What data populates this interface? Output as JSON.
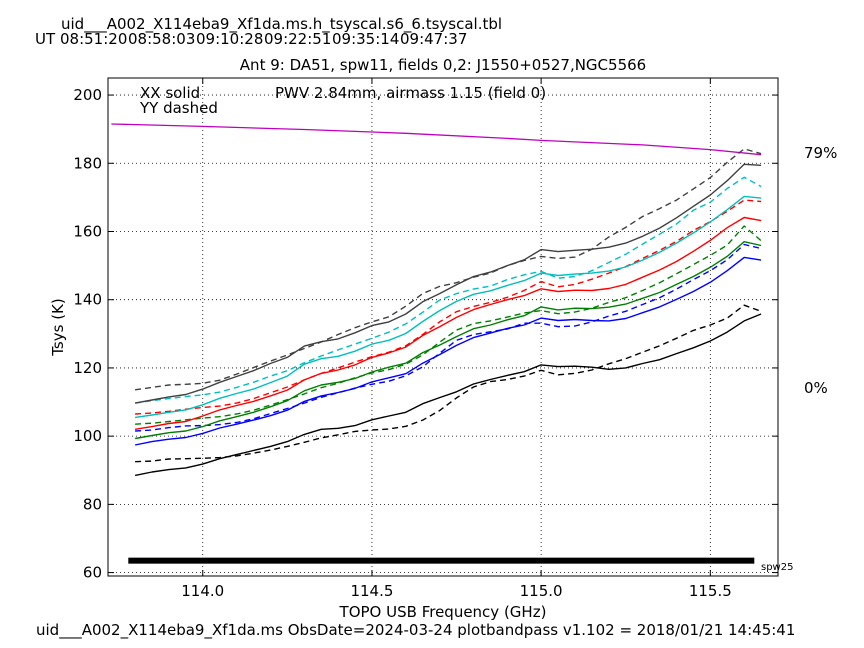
{
  "header": {
    "file_title": "uid___A002_X114eba9_Xf1da.ms.h_tsyscal.s6_6.tsyscal.tbl",
    "ut_label": "UT",
    "ut_times": [
      {
        "text": "08:51:20",
        "color": "#000000"
      },
      {
        "text": "08:58:03",
        "color": "#0000ff"
      },
      {
        "text": "09:10:28",
        "color": "#008000"
      },
      {
        "text": "09:22:51",
        "color": "#ff0000"
      },
      {
        "text": "09:35:14",
        "color": "#00bfbf"
      },
      {
        "text": "09:47:37",
        "color": "#404040"
      }
    ]
  },
  "footer": {
    "text": "uid___A002_X114eba9_Xf1da.ms  ObsDate=2024-03-24   plotbandpass v1.102 = 2018/01/21 14:45:41"
  },
  "chart_data": {
    "type": "line",
    "title": "Ant 9: DA51,  spw11,  fields 0,2: J1550+0527,NGC5566",
    "xlabel": "TOPO USB Frequency (GHz)",
    "ylabel": "Tsys (K)",
    "xlim": [
      113.72,
      115.7
    ],
    "ylim": [
      59,
      205
    ],
    "xticks": [
      114.0,
      114.5,
      115.0,
      115.5
    ],
    "xtick_labels": [
      "114.0",
      "114.5",
      "115.0",
      "115.5"
    ],
    "yticks": [
      60,
      80,
      100,
      120,
      140,
      160,
      180,
      200
    ],
    "ytick_labels": [
      "60",
      "80",
      "100",
      "120",
      "140",
      "160",
      "180",
      "200"
    ],
    "grid": true,
    "legend": {
      "solid_label": "XX solid",
      "dashed_label": "YY dashed",
      "placement": "top-left"
    },
    "pwv_text": "PWV 2.84mm, airmass 1.15 (field 0)",
    "pwv_color": "#bf00bf",
    "transmission": {
      "x": [
        113.73,
        114.0,
        114.3,
        114.6,
        114.9,
        115.0,
        115.3,
        115.5,
        115.65
      ],
      "y": [
        191.5,
        190.8,
        189.9,
        188.8,
        187.3,
        186.7,
        185.4,
        184.0,
        182.5
      ],
      "top_label": "79%",
      "bottom_label": "0%"
    },
    "spw_bar": {
      "x_range": [
        113.78,
        115.63
      ],
      "y": 63.5,
      "label": "spw25"
    },
    "x": [
      113.8,
      113.85,
      113.9,
      113.95,
      114.0,
      114.05,
      114.1,
      114.15,
      114.2,
      114.25,
      114.3,
      114.35,
      114.4,
      114.45,
      114.5,
      114.55,
      114.6,
      114.65,
      114.7,
      114.75,
      114.8,
      114.85,
      114.9,
      114.95,
      115.0,
      115.05,
      115.1,
      115.15,
      115.2,
      115.25,
      115.3,
      115.35,
      115.4,
      115.45,
      115.5,
      115.55,
      115.6,
      115.65
    ],
    "series": [
      {
        "color": "#000000",
        "dash": false,
        "values": [
          88.5,
          89.5,
          90.2,
          90.7,
          91.8,
          93.4,
          94.6,
          95.8,
          97.0,
          98.4,
          100.5,
          102.0,
          102.3,
          103.1,
          104.8,
          105.9,
          107.0,
          109.5,
          111.3,
          113.0,
          115.3,
          116.6,
          117.8,
          118.9,
          120.9,
          120.4,
          120.5,
          120.2,
          119.6,
          120.0,
          121.3,
          122.4,
          124.2,
          125.9,
          127.9,
          130.5,
          133.8,
          135.8
        ]
      },
      {
        "color": "#000000",
        "dash": true,
        "values": [
          92.5,
          92.7,
          93.3,
          93.4,
          93.5,
          93.7,
          94.2,
          95.0,
          95.9,
          97.0,
          98.2,
          99.5,
          100.4,
          101.4,
          101.8,
          102.1,
          102.9,
          104.7,
          107.5,
          111.2,
          114.4,
          116.0,
          116.6,
          117.6,
          119.3,
          118.0,
          118.4,
          119.4,
          121.2,
          122.7,
          124.6,
          126.5,
          128.7,
          131.0,
          132.6,
          134.6,
          138.4,
          136.6
        ]
      },
      {
        "color": "#0000ff",
        "dash": false,
        "values": [
          97.4,
          98.4,
          99.1,
          99.6,
          100.8,
          102.4,
          103.5,
          104.7,
          106.0,
          107.6,
          110.2,
          111.8,
          112.8,
          114.0,
          115.9,
          117.1,
          118.3,
          121.4,
          123.9,
          126.6,
          128.9,
          130.2,
          131.6,
          132.6,
          134.6,
          133.9,
          134.2,
          133.9,
          133.8,
          134.5,
          136.2,
          137.9,
          140.1,
          142.4,
          145.1,
          148.5,
          152.4,
          151.6
        ]
      },
      {
        "color": "#0000ff",
        "dash": true,
        "values": [
          101.5,
          101.8,
          102.5,
          103.0,
          103.1,
          103.4,
          104.0,
          105.1,
          106.6,
          108.1,
          109.7,
          111.4,
          112.7,
          114.1,
          115.2,
          116.1,
          117.7,
          120.3,
          124.3,
          128.1,
          129.8,
          130.6,
          131.4,
          133.1,
          133.1,
          132.1,
          132.3,
          133.5,
          135.2,
          136.6,
          138.6,
          140.6,
          143.1,
          145.9,
          148.5,
          151.7,
          156.2,
          155.0
        ]
      },
      {
        "color": "#008000",
        "dash": false,
        "values": [
          99.3,
          100.2,
          101.0,
          101.5,
          102.8,
          104.5,
          105.7,
          107.0,
          108.6,
          110.4,
          113.3,
          115.0,
          115.8,
          116.9,
          118.8,
          120.2,
          121.4,
          124.5,
          126.7,
          129.2,
          131.5,
          132.6,
          134.1,
          135.3,
          137.9,
          137.0,
          137.5,
          137.4,
          137.8,
          138.7,
          140.4,
          142.1,
          144.5,
          146.8,
          149.5,
          152.7,
          157.0,
          155.9
        ]
      },
      {
        "color": "#008000",
        "dash": true,
        "values": [
          103.5,
          103.8,
          104.3,
          104.8,
          105.3,
          105.7,
          106.5,
          107.6,
          109.1,
          110.7,
          112.4,
          114.2,
          115.5,
          117.1,
          118.5,
          119.5,
          121.1,
          123.8,
          127.5,
          131.1,
          133.0,
          133.8,
          134.9,
          136.1,
          136.8,
          135.9,
          136.4,
          137.5,
          139.2,
          140.6,
          142.7,
          145.0,
          147.6,
          150.3,
          153.0,
          156.0,
          161.6,
          157.3
        ]
      },
      {
        "color": "#ff0000",
        "dash": false,
        "values": [
          102.0,
          102.8,
          103.7,
          104.3,
          105.9,
          107.7,
          109.0,
          110.2,
          111.8,
          113.5,
          116.5,
          118.4,
          119.4,
          120.9,
          123.1,
          124.4,
          126.1,
          129.5,
          132.1,
          134.8,
          137.1,
          138.6,
          140.0,
          141.2,
          143.2,
          142.4,
          142.8,
          142.7,
          143.3,
          144.5,
          146.6,
          148.7,
          151.2,
          154.2,
          157.4,
          161.1,
          164.1,
          163.2
        ]
      },
      {
        "color": "#ff0000",
        "dash": true,
        "values": [
          106.5,
          106.8,
          107.3,
          107.9,
          108.4,
          108.8,
          109.7,
          111.0,
          112.7,
          114.4,
          116.5,
          118.4,
          120.0,
          121.7,
          123.3,
          124.6,
          126.5,
          129.8,
          133.5,
          136.5,
          138.0,
          139.2,
          140.7,
          142.7,
          145.3,
          143.8,
          144.5,
          146.0,
          147.8,
          149.7,
          152.1,
          154.5,
          157.1,
          160.3,
          162.9,
          165.9,
          169.2,
          168.8
        ]
      },
      {
        "color": "#00bfbf",
        "dash": false,
        "values": [
          105.5,
          106.2,
          107.0,
          107.7,
          109.2,
          111.1,
          112.5,
          113.8,
          115.7,
          117.6,
          121.1,
          122.7,
          123.4,
          124.9,
          127.0,
          128.1,
          130.1,
          133.6,
          136.8,
          139.5,
          141.6,
          142.6,
          144.2,
          145.6,
          147.8,
          147.1,
          147.5,
          147.8,
          148.4,
          149.6,
          151.6,
          153.9,
          156.6,
          159.6,
          162.8,
          166.4,
          170.3,
          169.8
        ]
      },
      {
        "color": "#00bfbf",
        "dash": true,
        "values": [
          109.7,
          110.4,
          111.0,
          111.6,
          112.1,
          112.9,
          114.3,
          115.8,
          117.6,
          119.2,
          121.5,
          123.5,
          125.3,
          127.0,
          128.7,
          130.5,
          132.9,
          136.3,
          139.9,
          141.8,
          143.1,
          144.0,
          145.9,
          147.3,
          148.3,
          146.3,
          146.8,
          148.5,
          150.9,
          153.3,
          156.3,
          159.2,
          162.2,
          166.2,
          168.6,
          172.6,
          175.9,
          173.2
        ]
      },
      {
        "color": "#404040",
        "dash": false,
        "values": [
          109.7,
          110.6,
          111.5,
          112.2,
          113.8,
          115.8,
          117.5,
          119.2,
          121.3,
          123.1,
          126.4,
          127.7,
          128.5,
          130.3,
          132.4,
          133.5,
          135.8,
          139.4,
          141.8,
          144.4,
          146.8,
          148.1,
          150.0,
          151.7,
          154.7,
          154.1,
          154.5,
          154.8,
          155.4,
          156.6,
          158.6,
          161.0,
          164.0,
          167.4,
          170.7,
          174.9,
          179.7,
          179.4
        ]
      },
      {
        "color": "#404040",
        "dash": true,
        "values": [
          113.6,
          114.3,
          115.0,
          115.2,
          115.5,
          116.4,
          118.2,
          120.1,
          122.0,
          123.8,
          125.7,
          127.6,
          129.8,
          131.8,
          133.5,
          135.0,
          138.1,
          141.8,
          143.9,
          145.0,
          146.6,
          147.8,
          150.0,
          151.5,
          152.7,
          152.1,
          152.5,
          154.8,
          158.4,
          161.2,
          164.4,
          166.7,
          169.2,
          172.5,
          175.8,
          180.3,
          184.2,
          182.8
        ]
      }
    ]
  }
}
